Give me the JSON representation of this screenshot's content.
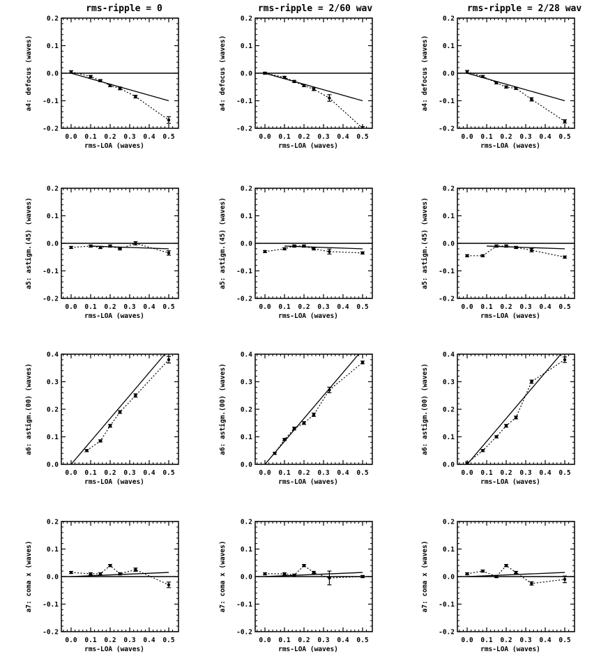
{
  "column_titles": [
    "rms-ripple = 0",
    "rms-ripple = 2/60 wav",
    "rms-ripple = 2/28 wav"
  ],
  "chart_data": [
    {
      "type": "scatter",
      "row": 0,
      "col": 0,
      "xlabel": "rms-LOA (waves)",
      "ylabel": "a4: defocus (waves)",
      "xlim": [
        -0.05,
        0.55
      ],
      "ylim": [
        -0.2,
        0.2
      ],
      "xticks": [
        "0.0",
        "0.1",
        "0.2",
        "0.3",
        "0.4",
        "0.5"
      ],
      "yticks": [
        "-0.2",
        "-0.1",
        "0.0",
        "0.1",
        "0.2"
      ],
      "reference_line": {
        "x": [
          0.0,
          0.5
        ],
        "y": [
          0.0,
          -0.1
        ]
      },
      "points": {
        "x": [
          0.0,
          0.1,
          0.15,
          0.2,
          0.25,
          0.33,
          0.5
        ],
        "y": [
          0.005,
          -0.012,
          -0.027,
          -0.045,
          -0.055,
          -0.085,
          -0.17
        ],
        "err": [
          0.004,
          0.003,
          0.004,
          0.004,
          0.005,
          0.005,
          0.012
        ]
      }
    },
    {
      "type": "scatter",
      "row": 0,
      "col": 1,
      "xlabel": "rms-LOA (waves)",
      "ylabel": "a4: defocus (waves)",
      "xlim": [
        -0.05,
        0.55
      ],
      "ylim": [
        -0.2,
        0.2
      ],
      "xticks": [
        "0.0",
        "0.1",
        "0.2",
        "0.3",
        "0.4",
        "0.5"
      ],
      "yticks": [
        "-0.2",
        "-0.1",
        "0.0",
        "0.1",
        "0.2"
      ],
      "reference_line": {
        "x": [
          0.0,
          0.5
        ],
        "y": [
          0.0,
          -0.1
        ]
      },
      "points": {
        "x": [
          0.0,
          0.1,
          0.15,
          0.2,
          0.25,
          0.33,
          0.5
        ],
        "y": [
          0.0,
          -0.015,
          -0.03,
          -0.045,
          -0.058,
          -0.09,
          -0.2
        ],
        "err": [
          0.003,
          0.003,
          0.004,
          0.004,
          0.005,
          0.012,
          0.006
        ]
      }
    },
    {
      "type": "scatter",
      "row": 0,
      "col": 2,
      "xlabel": "rms-LOA (waves)",
      "ylabel": "a4: defocus (waves)",
      "xlim": [
        -0.05,
        0.55
      ],
      "ylim": [
        -0.2,
        0.2
      ],
      "xticks": [
        "0.0",
        "0.1",
        "0.2",
        "0.3",
        "0.4",
        "0.5"
      ],
      "yticks": [
        "-0.2",
        "-0.1",
        "0.0",
        "0.1",
        "0.2"
      ],
      "reference_line": {
        "x": [
          0.0,
          0.5
        ],
        "y": [
          0.0,
          -0.1
        ]
      },
      "points": {
        "x": [
          0.0,
          0.08,
          0.15,
          0.2,
          0.25,
          0.33,
          0.5
        ],
        "y": [
          0.005,
          -0.012,
          -0.035,
          -0.05,
          -0.055,
          -0.095,
          -0.175
        ],
        "err": [
          0.005,
          0.003,
          0.004,
          0.004,
          0.004,
          0.006,
          0.006
        ]
      }
    },
    {
      "type": "scatter",
      "row": 1,
      "col": 0,
      "xlabel": "rms-LOA (waves)",
      "ylabel": "a5: astigm.(45) (waves)",
      "xlim": [
        -0.05,
        0.55
      ],
      "ylim": [
        -0.2,
        0.2
      ],
      "xticks": [
        "0.0",
        "0.1",
        "0.2",
        "0.3",
        "0.4",
        "0.5"
      ],
      "yticks": [
        "-0.2",
        "-0.1",
        "0.0",
        "0.1",
        "0.2"
      ],
      "reference_line": {
        "x": [
          0.1,
          0.5
        ],
        "y": [
          -0.01,
          -0.02
        ]
      },
      "points": {
        "x": [
          0.0,
          0.1,
          0.15,
          0.2,
          0.25,
          0.33,
          0.5
        ],
        "y": [
          -0.015,
          -0.01,
          -0.015,
          -0.01,
          -0.02,
          0.0,
          -0.035
        ],
        "err": [
          0.003,
          0.003,
          0.004,
          0.004,
          0.004,
          0.006,
          0.008
        ]
      }
    },
    {
      "type": "scatter",
      "row": 1,
      "col": 1,
      "xlabel": "rms-LOA (waves)",
      "ylabel": "a5: astigm.(45) (waves)",
      "xlim": [
        -0.05,
        0.55
      ],
      "ylim": [
        -0.2,
        0.2
      ],
      "xticks": [
        "0.0",
        "0.1",
        "0.2",
        "0.3",
        "0.4",
        "0.5"
      ],
      "yticks": [
        "-0.2",
        "-0.1",
        "0.0",
        "0.1",
        "0.2"
      ],
      "reference_line": {
        "x": [
          0.1,
          0.5
        ],
        "y": [
          -0.01,
          -0.02
        ]
      },
      "points": {
        "x": [
          0.0,
          0.1,
          0.15,
          0.2,
          0.25,
          0.33,
          0.5
        ],
        "y": [
          -0.03,
          -0.02,
          -0.01,
          -0.01,
          -0.02,
          -0.03,
          -0.035
        ],
        "err": [
          0.003,
          0.003,
          0.004,
          0.004,
          0.004,
          0.009,
          0.004
        ]
      }
    },
    {
      "type": "scatter",
      "row": 1,
      "col": 2,
      "xlabel": "rms-LOA (waves)",
      "ylabel": "a5: astigm.(45) (waves)",
      "xlim": [
        -0.05,
        0.55
      ],
      "ylim": [
        -0.2,
        0.2
      ],
      "xticks": [
        "0.0",
        "0.1",
        "0.2",
        "0.3",
        "0.4",
        "0.5"
      ],
      "yticks": [
        "-0.2",
        "-0.1",
        "0.0",
        "0.1",
        "0.2"
      ],
      "reference_line": {
        "x": [
          0.1,
          0.5
        ],
        "y": [
          -0.01,
          -0.02
        ]
      },
      "points": {
        "x": [
          0.0,
          0.08,
          0.15,
          0.2,
          0.25,
          0.33,
          0.5
        ],
        "y": [
          -0.045,
          -0.045,
          -0.01,
          -0.01,
          -0.015,
          -0.025,
          -0.05
        ],
        "err": [
          0.003,
          0.003,
          0.004,
          0.004,
          0.004,
          0.006,
          0.004
        ]
      }
    },
    {
      "type": "scatter",
      "row": 2,
      "col": 0,
      "xlabel": "rms-LOA (waves)",
      "ylabel": "a6: astigm.(00) (waves)",
      "xlim": [
        -0.05,
        0.55
      ],
      "ylim": [
        0.0,
        0.4
      ],
      "xticks": [
        "0.0",
        "0.1",
        "0.2",
        "0.3",
        "0.4",
        "0.5"
      ],
      "yticks": [
        "0.0",
        "0.1",
        "0.2",
        "0.3",
        "0.4"
      ],
      "reference_line": {
        "x": [
          0.0,
          0.48
        ],
        "y": [
          0.0,
          0.4
        ]
      },
      "points": {
        "x": [
          0.08,
          0.15,
          0.2,
          0.25,
          0.33,
          0.5
        ],
        "y": [
          0.05,
          0.085,
          0.14,
          0.19,
          0.25,
          0.38
        ],
        "err": [
          0.004,
          0.004,
          0.005,
          0.005,
          0.006,
          0.012
        ]
      }
    },
    {
      "type": "scatter",
      "row": 2,
      "col": 1,
      "xlabel": "rms-LOA (waves)",
      "ylabel": "a6: astigm.(00) (waves)",
      "xlim": [
        -0.05,
        0.55
      ],
      "ylim": [
        0.0,
        0.4
      ],
      "xticks": [
        "0.0",
        "0.1",
        "0.2",
        "0.3",
        "0.4",
        "0.5"
      ],
      "yticks": [
        "0.0",
        "0.1",
        "0.2",
        "0.3",
        "0.4"
      ],
      "reference_line": {
        "x": [
          0.0,
          0.48
        ],
        "y": [
          0.0,
          0.4
        ]
      },
      "points": {
        "x": [
          0.05,
          0.1,
          0.15,
          0.2,
          0.25,
          0.33,
          0.5
        ],
        "y": [
          0.04,
          0.09,
          0.13,
          0.15,
          0.18,
          0.27,
          0.37
        ],
        "err": [
          0.004,
          0.004,
          0.005,
          0.005,
          0.006,
          0.01,
          0.005
        ]
      }
    },
    {
      "type": "scatter",
      "row": 2,
      "col": 2,
      "xlabel": "rms-LOA (waves)",
      "ylabel": "a6: astigm.(00) (waves)",
      "xlim": [
        -0.05,
        0.55
      ],
      "ylim": [
        0.0,
        0.4
      ],
      "xticks": [
        "0.0",
        "0.1",
        "0.2",
        "0.3",
        "0.4",
        "0.5"
      ],
      "yticks": [
        "0.0",
        "0.1",
        "0.2",
        "0.3",
        "0.4"
      ],
      "reference_line": {
        "x": [
          0.0,
          0.48
        ],
        "y": [
          0.0,
          0.4
        ]
      },
      "points": {
        "x": [
          0.0,
          0.08,
          0.15,
          0.2,
          0.25,
          0.33,
          0.5
        ],
        "y": [
          0.005,
          0.05,
          0.1,
          0.14,
          0.17,
          0.3,
          0.38
        ],
        "err": [
          0.003,
          0.004,
          0.004,
          0.005,
          0.005,
          0.006,
          0.01
        ]
      }
    },
    {
      "type": "scatter",
      "row": 3,
      "col": 0,
      "xlabel": "rms-LOA (waves)",
      "ylabel": "a7: coma x (waves)",
      "xlim": [
        -0.05,
        0.55
      ],
      "ylim": [
        -0.2,
        0.2
      ],
      "xticks": [
        "0.0",
        "0.1",
        "0.2",
        "0.3",
        "0.4",
        "0.5"
      ],
      "yticks": [
        "-0.2",
        "-0.1",
        "0.0",
        "0.1",
        "0.2"
      ],
      "reference_line": {
        "x": [
          0.0,
          0.5
        ],
        "y": [
          0.0,
          0.015
        ]
      },
      "points": {
        "x": [
          0.0,
          0.1,
          0.15,
          0.2,
          0.25,
          0.33,
          0.5
        ],
        "y": [
          0.015,
          0.01,
          0.01,
          0.04,
          0.01,
          0.025,
          -0.03
        ],
        "err": [
          0.003,
          0.003,
          0.004,
          0.004,
          0.004,
          0.006,
          0.01
        ]
      }
    },
    {
      "type": "scatter",
      "row": 3,
      "col": 1,
      "xlabel": "rms-LOA (waves)",
      "ylabel": "a7: coma x (waves)",
      "xlim": [
        -0.05,
        0.55
      ],
      "ylim": [
        -0.2,
        0.2
      ],
      "xticks": [
        "0.0",
        "0.1",
        "0.2",
        "0.3",
        "0.4",
        "0.5"
      ],
      "yticks": [
        "-0.2",
        "-0.1",
        "0.0",
        "0.1",
        "0.2"
      ],
      "reference_line": {
        "x": [
          0.0,
          0.5
        ],
        "y": [
          0.0,
          0.015
        ]
      },
      "points": {
        "x": [
          0.0,
          0.1,
          0.15,
          0.2,
          0.25,
          0.33,
          0.5
        ],
        "y": [
          0.01,
          0.01,
          0.005,
          0.04,
          0.015,
          -0.005,
          0.0
        ],
        "err": [
          0.003,
          0.003,
          0.004,
          0.004,
          0.004,
          0.025,
          0.004
        ]
      }
    },
    {
      "type": "scatter",
      "row": 3,
      "col": 2,
      "xlabel": "rms-LOA (waves)",
      "ylabel": "a7: coma x (waves)",
      "xlim": [
        -0.05,
        0.55
      ],
      "ylim": [
        -0.2,
        0.2
      ],
      "xticks": [
        "0.0",
        "0.1",
        "0.2",
        "0.3",
        "0.4",
        "0.5"
      ],
      "yticks": [
        "-0.2",
        "-0.1",
        "0.0",
        "0.1",
        "0.2"
      ],
      "reference_line": {
        "x": [
          0.0,
          0.5
        ],
        "y": [
          0.0,
          0.015
        ]
      },
      "points": {
        "x": [
          0.0,
          0.08,
          0.15,
          0.2,
          0.25,
          0.33,
          0.5
        ],
        "y": [
          0.01,
          0.02,
          0.0,
          0.04,
          0.015,
          -0.025,
          -0.01
        ],
        "err": [
          0.003,
          0.003,
          0.004,
          0.004,
          0.004,
          0.006,
          0.012
        ]
      }
    }
  ]
}
